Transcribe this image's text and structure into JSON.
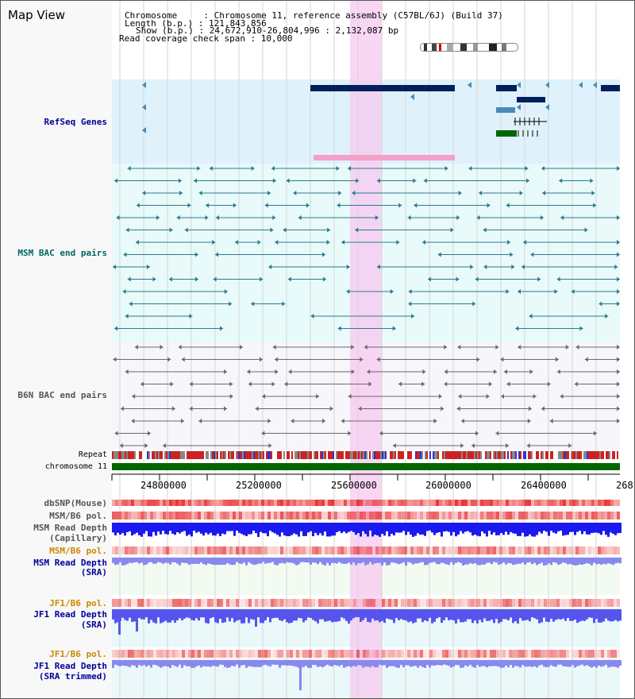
{
  "title": "Map View",
  "info": {
    "chromosome": "Chromosome     : Chromosome 11, reference assembly (C57BL/6J) (Build 37)",
    "length": "Length (b.p.) : 121,843,856",
    "show": "Show (b.p.) : 24,672,910-26,804,996 : 2,132,087 bp",
    "span": "Read coverage check span : 10,000"
  },
  "tracks": {
    "refseq": "RefSeq Genes",
    "msm_bac": "MSM BAC end pairs",
    "b6n_bac": "B6N BAC end pairs",
    "repeat": "Repeat",
    "chromosome": "chromosome 11",
    "dbsnp": "dbSNP(Mouse)",
    "msm_pol": "MSM/B6 pol.",
    "msm_depth_cap_1": "MSM Read Depth",
    "msm_depth_cap_2": "(Capillary)",
    "msm_pol2": "MSM/B6 pol.",
    "msm_depth_sra_1": "MSM Read Depth",
    "msm_depth_sra_2": "(SRA)",
    "jf1_pol": "JF1/B6 pol.",
    "jf1_depth_1": "JF1 Read Depth",
    "jf1_depth_2": "(SRA)",
    "jf1_pol2": "JF1/B6 pol.",
    "jf1_trim_1": "JF1 Read Depth",
    "jf1_trim_2": "(SRA trimmed)"
  },
  "axis": {
    "ticks": [
      "24800000",
      "25200000",
      "25600000",
      "26000000",
      "26400000",
      "268"
    ]
  },
  "colors": {
    "refseq_label": "#000099",
    "msm_label": "#006666",
    "b6n_label": "#555555",
    "orange_label": "#cc8800",
    "blue_label": "#000099",
    "highlight": "#f7c8f0",
    "chrom_green": "#006600",
    "gene_navy": "#001f5c",
    "depth_blue": "#1a1aee",
    "depth_light": "#8888ee"
  }
}
